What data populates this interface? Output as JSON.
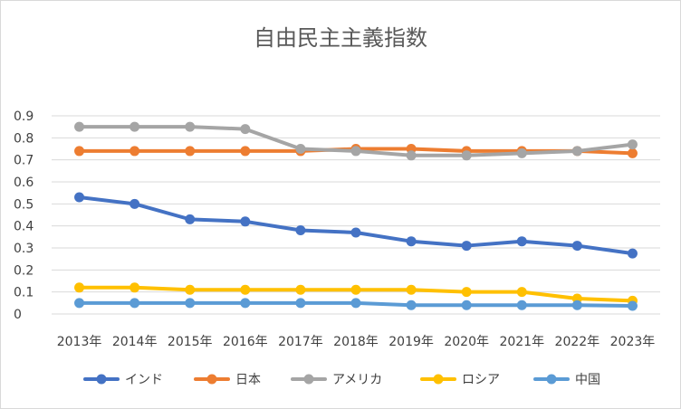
{
  "chart_data": {
    "type": "line",
    "title": "自由民主主義指数",
    "xlabel": "",
    "ylabel": "",
    "categories": [
      "2013年",
      "2014年",
      "2015年",
      "2016年",
      "2017年",
      "2018年",
      "2019年",
      "2020年",
      "2021年",
      "2022年",
      "2023年"
    ],
    "ylim": [
      0,
      0.9
    ],
    "yticks": [
      "0",
      "0.1",
      "0.2",
      "0.3",
      "0.4",
      "0.5",
      "0.6",
      "0.7",
      "0.8",
      "0.9"
    ],
    "ytick_values": [
      0,
      0.1,
      0.2,
      0.3,
      0.4,
      0.5,
      0.6,
      0.7,
      0.8,
      0.9
    ],
    "grid": true,
    "legend_position": "bottom",
    "series": [
      {
        "name": "インド",
        "color": "#4472c4",
        "values": [
          0.53,
          0.5,
          0.43,
          0.42,
          0.38,
          0.37,
          0.33,
          0.31,
          0.33,
          0.31,
          0.275
        ]
      },
      {
        "name": "日本",
        "color": "#ed7d31",
        "values": [
          0.74,
          0.74,
          0.74,
          0.74,
          0.74,
          0.75,
          0.75,
          0.74,
          0.74,
          0.74,
          0.73
        ]
      },
      {
        "name": "アメリカ",
        "color": "#a5a5a5",
        "values": [
          0.85,
          0.85,
          0.85,
          0.84,
          0.75,
          0.74,
          0.72,
          0.72,
          0.73,
          0.74,
          0.77
        ]
      },
      {
        "name": "ロシア",
        "color": "#ffc000",
        "values": [
          0.12,
          0.12,
          0.11,
          0.11,
          0.11,
          0.11,
          0.11,
          0.1,
          0.1,
          0.07,
          0.06
        ]
      },
      {
        "name": "中国",
        "color": "#5b9bd5",
        "values": [
          0.05,
          0.05,
          0.05,
          0.05,
          0.05,
          0.05,
          0.04,
          0.04,
          0.04,
          0.04,
          0.037
        ]
      }
    ],
    "gridline_color": "#d9d9d9"
  }
}
